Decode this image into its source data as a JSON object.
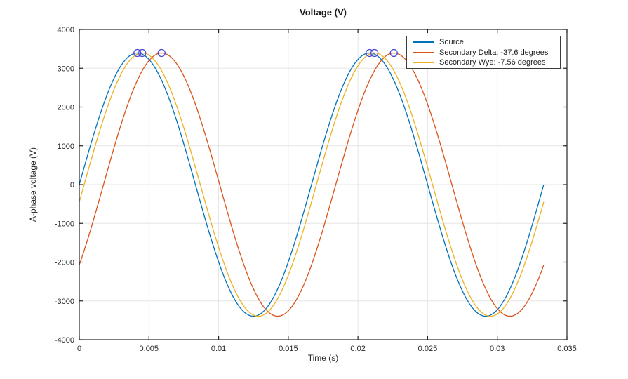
{
  "figure": {
    "title": "Voltage (V)",
    "background": "#ffffff"
  },
  "chart_data": {
    "type": "line",
    "title": "Voltage (V)",
    "xlabel": "Time (s)",
    "ylabel": "A-phase voltage (V)",
    "xlim": [
      0,
      0.035
    ],
    "ylim": [
      -4000,
      4000
    ],
    "x_ticks": [
      0,
      0.005,
      0.01,
      0.015,
      0.02,
      0.025,
      0.03,
      0.035
    ],
    "x_tick_labels": [
      "0",
      "0.005",
      "0.01",
      "0.015",
      "0.02",
      "0.025",
      "0.03",
      "0.035"
    ],
    "y_ticks": [
      -4000,
      -3000,
      -2000,
      -1000,
      0,
      1000,
      2000,
      3000,
      4000
    ],
    "y_tick_labels": [
      "-4000",
      "-3000",
      "-2000",
      "-1000",
      "0",
      "1000",
      "2000",
      "3000",
      "4000"
    ],
    "grid": true,
    "colors": {
      "grid": "#e6e6e6",
      "axis": "#262626",
      "background": "#ffffff"
    },
    "waveform": {
      "amplitude_v": 3394,
      "frequency_hz": 60,
      "t_start": 0,
      "t_end": 0.0333333
    },
    "series": [
      {
        "name": "Source",
        "color": "#0072BD",
        "phase_deg": 0
      },
      {
        "name": "Secondary Delta: -37.6 degrees",
        "color": "#D95319",
        "phase_deg": -37.6
      },
      {
        "name": "Secondary Wye: -7.56 degrees",
        "color": "#EDB120",
        "phase_deg": -7.56
      }
    ],
    "peak_markers": {
      "shape": "circle",
      "color": "#4A4AD2",
      "radius": 5,
      "points": [
        {
          "t": 0.0041667,
          "v": 3394
        },
        {
          "t": 0.0045167,
          "v": 3394
        },
        {
          "t": 0.0059074,
          "v": 3394
        },
        {
          "t": 0.0208333,
          "v": 3394
        },
        {
          "t": 0.0211833,
          "v": 3394
        },
        {
          "t": 0.0225741,
          "v": 3394
        }
      ]
    },
    "legend": {
      "position": "top-right",
      "entries": [
        {
          "label": "Source",
          "color": "#0072BD"
        },
        {
          "label": "Secondary Delta: -37.6 degrees",
          "color": "#D95319"
        },
        {
          "label": "Secondary Wye: -7.56 degrees",
          "color": "#EDB120"
        }
      ]
    }
  }
}
